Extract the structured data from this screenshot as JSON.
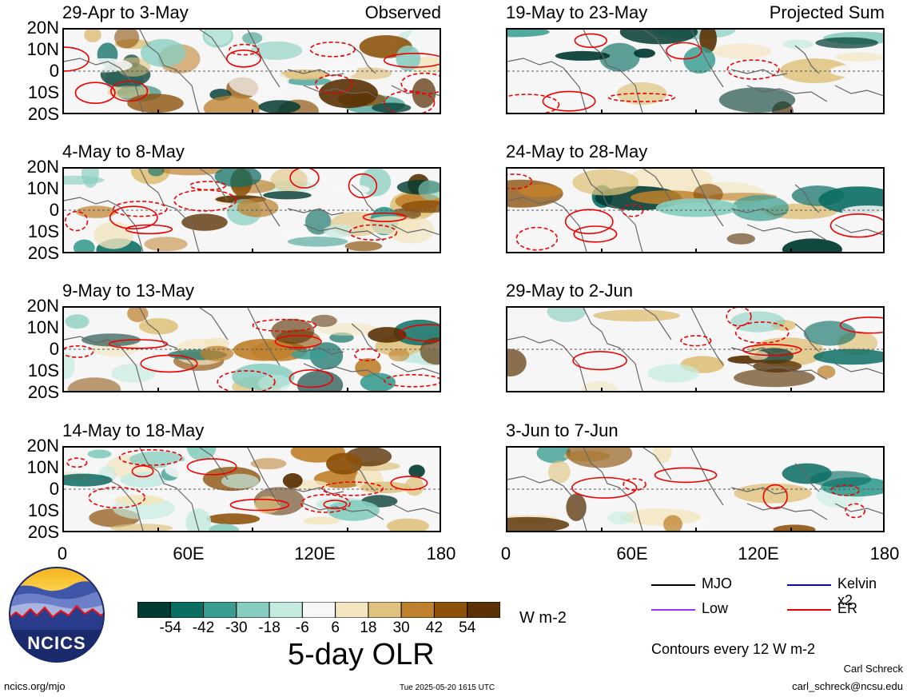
{
  "panels": [
    {
      "title": "29-Apr to 3-May",
      "corner": "Observed"
    },
    {
      "title": "4-May to 8-May",
      "corner": ""
    },
    {
      "title": "9-May to 13-May",
      "corner": ""
    },
    {
      "title": "14-May to 18-May",
      "corner": ""
    },
    {
      "title": "19-May to 23-May",
      "corner": "Projected Sum"
    },
    {
      "title": "24-May to 28-May",
      "corner": ""
    },
    {
      "title": "29-May to 2-Jun",
      "corner": ""
    },
    {
      "title": "3-Jun to 7-Jun",
      "corner": ""
    }
  ],
  "lat_labels": [
    "20N",
    "10N",
    "0",
    "10S",
    "20S"
  ],
  "lon_labels": [
    "0",
    "60E",
    "120E",
    "180"
  ],
  "colorbar": {
    "colors": [
      "#033b33",
      "#0b6e63",
      "#3a9d90",
      "#86cdbf",
      "#c5ebe1",
      "#f7f7f7",
      "#f3e5bf",
      "#dfc27d",
      "#bf812d",
      "#8c510a",
      "#5a3205"
    ],
    "labels": [
      "-54",
      "-42",
      "-30",
      "-18",
      "-6",
      "6",
      "18",
      "30",
      "42",
      "54"
    ],
    "units": "W m-2",
    "title": "5-day OLR"
  },
  "legend": [
    {
      "label": "MJO",
      "color": "#000000"
    },
    {
      "label": "Kelvin x2",
      "color": "#0000ee"
    },
    {
      "label": "Low",
      "color": "#9933ee"
    },
    {
      "label": "ER",
      "color": "#ee0000"
    }
  ],
  "contour_note": "Contours every 12 W m-2",
  "logo_text": "NCICS",
  "footer": {
    "url": "ncics.org/mjo",
    "timestamp": "Tue 2025-05-20 1615 UTC",
    "author": "Carl Schreck",
    "email": "carl_schreck@ncsu.edu"
  }
}
